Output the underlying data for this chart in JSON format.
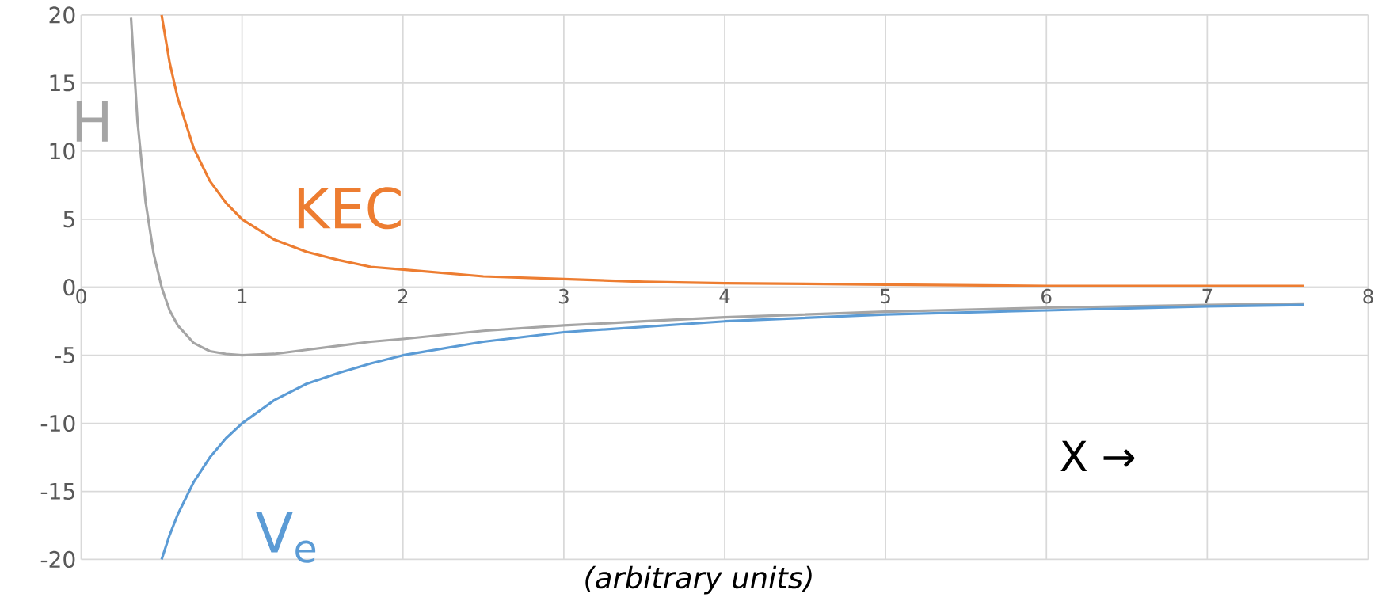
{
  "chart_data": {
    "type": "line",
    "xlabel": "X →",
    "annotations": [
      "(arbitrary units)"
    ],
    "xlim": [
      0,
      8
    ],
    "xticks": [
      0,
      1,
      2,
      3,
      4,
      5,
      6,
      7,
      8
    ],
    "ylim": [
      -20,
      20
    ],
    "yticks": [
      -20,
      -15,
      -10,
      -5,
      0,
      5,
      10,
      15,
      20
    ],
    "grid": true,
    "marker": "none",
    "line_style": "solid",
    "series": [
      {
        "name": "H",
        "color": "#a5a5a5",
        "x": [
          0.31,
          0.35,
          0.4,
          0.45,
          0.5,
          0.55,
          0.6,
          0.7,
          0.8,
          0.9,
          1,
          1.2,
          1.4,
          1.6,
          1.8,
          2,
          2.5,
          3,
          3.5,
          4,
          5,
          6,
          7,
          7.6
        ],
        "values": [
          19.8,
          12.2,
          6.3,
          2.5,
          0,
          -1.7,
          -2.8,
          -4.1,
          -4.7,
          -4.9,
          -5,
          -4.9,
          -4.6,
          -4.3,
          -4.0,
          -3.8,
          -3.2,
          -2.8,
          -2.5,
          -2.2,
          -1.8,
          -1.5,
          -1.3,
          -1.2
        ]
      },
      {
        "name": "KEC",
        "color": "#ed7d31",
        "x": [
          0.5,
          0.55,
          0.6,
          0.7,
          0.8,
          0.9,
          1,
          1.2,
          1.4,
          1.6,
          1.8,
          2,
          2.5,
          3,
          3.5,
          4,
          5,
          6,
          7,
          7.6
        ],
        "values": [
          20,
          16.5,
          13.9,
          10.2,
          7.8,
          6.2,
          5,
          3.5,
          2.6,
          2.0,
          1.5,
          1.3,
          0.8,
          0.6,
          0.4,
          0.3,
          0.2,
          0.1,
          0.1,
          0.1
        ]
      },
      {
        "name": "V$_{e}$",
        "color": "#5b9bd5",
        "x": [
          0.5,
          0.55,
          0.6,
          0.7,
          0.8,
          0.9,
          1,
          1.2,
          1.4,
          1.6,
          1.8,
          2,
          2.5,
          3,
          3.5,
          4,
          5,
          6,
          7,
          7.6
        ],
        "values": [
          -20,
          -18.2,
          -16.7,
          -14.3,
          -12.5,
          -11.1,
          -10,
          -8.3,
          -7.1,
          -6.3,
          -5.6,
          -5,
          -4,
          -3.3,
          -2.9,
          -2.5,
          -2,
          -1.7,
          -1.4,
          -1.3
        ]
      }
    ]
  }
}
